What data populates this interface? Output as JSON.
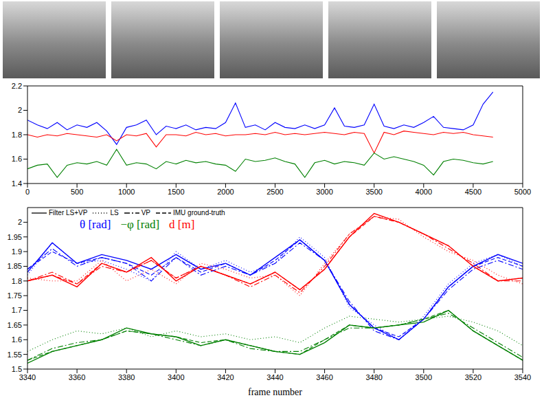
{
  "chart_data": [
    {
      "type": "line",
      "x": [
        0,
        100,
        200,
        300,
        400,
        500,
        600,
        700,
        800,
        900,
        1000,
        1100,
        1200,
        1300,
        1400,
        1500,
        1600,
        1700,
        1800,
        1900,
        2000,
        2100,
        2200,
        2300,
        2400,
        2500,
        2600,
        2700,
        2800,
        2900,
        3000,
        3100,
        3200,
        3300,
        3400,
        3500,
        3600,
        3700,
        3800,
        3900,
        4000,
        4100,
        4200,
        4300,
        4400,
        4500,
        4600,
        4700
      ],
      "xlim": [
        0,
        5000
      ],
      "xticks": [
        0,
        500,
        1000,
        1500,
        2000,
        2500,
        3000,
        3500,
        4000,
        4500,
        5000
      ],
      "ylim": [
        1.4,
        2.2
      ],
      "yticks": [
        1.4,
        1.6,
        1.8,
        2,
        2.2
      ],
      "series": [
        {
          "color": "#0000ff",
          "values": [
            1.92,
            1.88,
            1.85,
            1.9,
            1.84,
            1.88,
            1.86,
            1.9,
            1.83,
            1.72,
            1.86,
            1.88,
            1.92,
            1.8,
            1.87,
            1.85,
            1.88,
            1.84,
            1.86,
            1.85,
            1.9,
            2.06,
            1.86,
            1.88,
            1.84,
            1.9,
            1.86,
            1.85,
            1.88,
            1.85,
            1.88,
            2.02,
            1.87,
            1.86,
            1.88,
            2.05,
            1.87,
            1.85,
            1.88,
            1.86,
            1.9,
            1.95,
            1.86,
            1.85,
            1.84,
            1.88,
            2.05,
            2.15
          ]
        },
        {
          "color": "#ff0000",
          "values": [
            1.8,
            1.78,
            1.8,
            1.79,
            1.81,
            1.8,
            1.79,
            1.78,
            1.8,
            1.75,
            1.8,
            1.79,
            1.81,
            1.7,
            1.8,
            1.8,
            1.79,
            1.82,
            1.8,
            1.81,
            1.79,
            1.8,
            1.8,
            1.81,
            1.8,
            1.82,
            1.8,
            1.81,
            1.8,
            1.81,
            1.82,
            1.81,
            1.8,
            1.82,
            1.81,
            1.65,
            1.82,
            1.8,
            1.83,
            1.82,
            1.81,
            1.8,
            1.82,
            1.81,
            1.82,
            1.8,
            1.79,
            1.78
          ]
        },
        {
          "color": "#008000",
          "values": [
            1.52,
            1.55,
            1.56,
            1.45,
            1.55,
            1.57,
            1.56,
            1.58,
            1.55,
            1.68,
            1.55,
            1.57,
            1.56,
            1.52,
            1.58,
            1.56,
            1.59,
            1.57,
            1.58,
            1.56,
            1.55,
            1.5,
            1.6,
            1.58,
            1.59,
            1.61,
            1.58,
            1.56,
            1.45,
            1.57,
            1.59,
            1.56,
            1.58,
            1.57,
            1.55,
            1.65,
            1.6,
            1.62,
            1.6,
            1.58,
            1.55,
            1.47,
            1.58,
            1.6,
            1.59,
            1.57,
            1.56,
            1.58
          ]
        }
      ]
    },
    {
      "type": "line",
      "x_label": "frame number",
      "x": [
        3340,
        3350,
        3360,
        3370,
        3380,
        3390,
        3400,
        3410,
        3420,
        3430,
        3440,
        3450,
        3460,
        3470,
        3480,
        3490,
        3500,
        3510,
        3520,
        3530,
        3540
      ],
      "xlim": [
        3340,
        3540
      ],
      "xticks": [
        3340,
        3360,
        3380,
        3400,
        3420,
        3440,
        3460,
        3480,
        3500,
        3520,
        3540
      ],
      "ylim": [
        1.5,
        2.05
      ],
      "yticks": [
        1.5,
        1.55,
        1.6,
        1.65,
        1.7,
        1.75,
        1.8,
        1.85,
        1.9,
        1.95,
        2
      ],
      "legend": "upper left",
      "annotations": [
        {
          "text": "θ [rad]",
          "color": "#0000ff"
        },
        {
          "text": "−φ [rad]",
          "color": "#008000"
        },
        {
          "text": "d [m]",
          "color": "#ff0000"
        }
      ],
      "series": [
        {
          "name": "Filter LS+VP",
          "quantity": "θ [rad]",
          "color": "#0000ff",
          "line_style": "solid",
          "values": [
            1.83,
            1.93,
            1.86,
            1.89,
            1.87,
            1.84,
            1.89,
            1.84,
            1.86,
            1.82,
            1.88,
            1.94,
            1.87,
            1.72,
            1.64,
            1.6,
            1.67,
            1.78,
            1.85,
            1.89,
            1.86
          ]
        },
        {
          "name": "Filter LS+VP",
          "quantity": "−φ [rad]",
          "color": "#008000",
          "line_style": "solid",
          "values": [
            1.52,
            1.56,
            1.58,
            1.6,
            1.64,
            1.62,
            1.61,
            1.58,
            1.6,
            1.58,
            1.56,
            1.55,
            1.59,
            1.65,
            1.64,
            1.65,
            1.66,
            1.7,
            1.63,
            1.58,
            1.53
          ]
        },
        {
          "name": "Filter LS+VP",
          "quantity": "d [m]",
          "color": "#ff0000",
          "line_style": "solid",
          "values": [
            1.8,
            1.82,
            1.78,
            1.86,
            1.83,
            1.88,
            1.8,
            1.85,
            1.82,
            1.79,
            1.83,
            1.77,
            1.84,
            1.95,
            2.03,
            2.0,
            1.96,
            1.92,
            1.85,
            1.8,
            1.81
          ]
        },
        {
          "name": "LS",
          "quantity": "θ [rad]",
          "color": "#0000ff",
          "line_style": "dotted",
          "values": [
            1.82,
            1.93,
            1.86,
            1.87,
            1.84,
            1.8,
            1.9,
            1.84,
            1.87,
            1.83,
            1.86,
            1.95,
            1.88,
            1.71,
            1.65,
            1.6,
            1.68,
            1.79,
            1.86,
            1.89,
            1.85
          ]
        },
        {
          "name": "LS",
          "quantity": "−φ [rad]",
          "color": "#008000",
          "line_style": "dotted",
          "values": [
            1.56,
            1.6,
            1.63,
            1.62,
            1.64,
            1.61,
            1.63,
            1.61,
            1.62,
            1.6,
            1.61,
            1.59,
            1.64,
            1.68,
            1.67,
            1.66,
            1.67,
            1.68,
            1.66,
            1.63,
            1.58
          ]
        },
        {
          "name": "LS",
          "quantity": "d [m]",
          "color": "#ff0000",
          "line_style": "dotted",
          "values": [
            1.81,
            1.8,
            1.8,
            1.87,
            1.8,
            1.84,
            1.79,
            1.86,
            1.84,
            1.81,
            1.82,
            1.75,
            1.86,
            1.96,
            2.02,
            2.01,
            1.95,
            1.9,
            1.87,
            1.82,
            1.79
          ]
        },
        {
          "name": "VP",
          "quantity": "θ [rad]",
          "color": "#0000ff",
          "line_style": "dashdot",
          "values": [
            1.84,
            1.91,
            1.85,
            1.88,
            1.86,
            1.8,
            1.88,
            1.82,
            1.85,
            1.82,
            1.86,
            1.93,
            1.87,
            1.73,
            1.63,
            1.6,
            1.67,
            1.77,
            1.84,
            1.87,
            1.84
          ]
        },
        {
          "name": "VP",
          "quantity": "−φ [rad]",
          "color": "#008000",
          "line_style": "dashdot",
          "values": [
            1.53,
            1.57,
            1.59,
            1.6,
            1.63,
            1.62,
            1.6,
            1.58,
            1.6,
            1.57,
            1.56,
            1.56,
            1.6,
            1.64,
            1.64,
            1.65,
            1.67,
            1.69,
            1.64,
            1.59,
            1.54
          ]
        },
        {
          "name": "VP",
          "quantity": "d [m]",
          "color": "#ff0000",
          "line_style": "dashdot",
          "values": [
            1.8,
            1.83,
            1.79,
            1.85,
            1.83,
            1.87,
            1.81,
            1.85,
            1.82,
            1.78,
            1.82,
            1.76,
            1.85,
            1.96,
            2.02,
            2.0,
            1.96,
            1.91,
            1.86,
            1.8,
            1.8
          ]
        },
        {
          "name": "IMU ground-truth",
          "quantity": "θ [rad]",
          "color": "#0000ff",
          "line_style": "dashed",
          "values": [
            1.84,
            1.9,
            1.86,
            1.88,
            1.86,
            1.82,
            1.88,
            1.83,
            1.86,
            1.82,
            1.87,
            1.94,
            1.87,
            1.72,
            1.64,
            1.61,
            1.67,
            1.78,
            1.85,
            1.88,
            1.85
          ]
        },
        {
          "name": "IMU ground-truth",
          "quantity": "−φ [rad]",
          "color": "#008000",
          "line_style": "dashed",
          "values": [
            1.53,
            1.56,
            1.58,
            1.6,
            1.63,
            1.62,
            1.61,
            1.59,
            1.6,
            1.58,
            1.56,
            1.55,
            1.6,
            1.65,
            1.64,
            1.65,
            1.67,
            1.7,
            1.63,
            1.58,
            1.53
          ]
        },
        {
          "name": "IMU ground-truth",
          "quantity": "d [m]",
          "color": "#ff0000",
          "line_style": "dashed",
          "values": [
            1.8,
            1.82,
            1.79,
            1.86,
            1.83,
            1.87,
            1.81,
            1.85,
            1.82,
            1.79,
            1.83,
            1.77,
            1.84,
            1.95,
            2.02,
            2.0,
            1.96,
            1.92,
            1.85,
            1.8,
            1.81
          ]
        }
      ]
    }
  ]
}
